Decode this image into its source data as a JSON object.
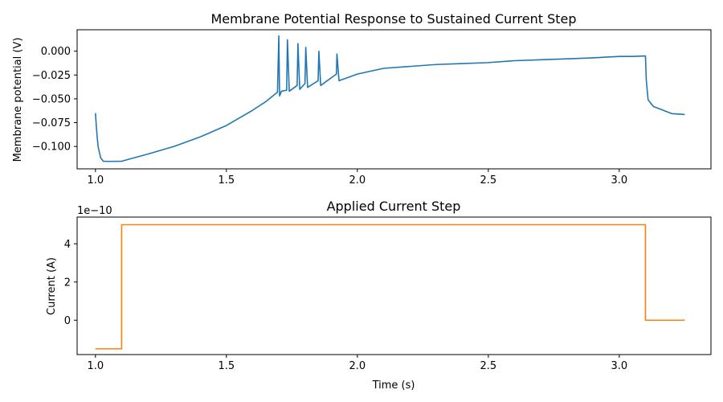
{
  "chart_data": [
    {
      "type": "line",
      "title": "Membrane Potential Response to Sustained Current Step",
      "xlabel": "",
      "ylabel": "Membrane potential (V)",
      "xlim": [
        0.93,
        3.35
      ],
      "ylim": [
        -0.1235,
        0.0225
      ],
      "xticks": [
        1.0,
        1.5,
        2.0,
        2.5,
        3.0
      ],
      "xticklabels": [
        "1.0",
        "1.5",
        "2.0",
        "2.5",
        "3.0"
      ],
      "yticks": [
        -0.1,
        -0.075,
        -0.05,
        -0.025,
        0.0
      ],
      "yticklabels": [
        "−0.100",
        "−0.075",
        "−0.050",
        "−0.025",
        "0.000"
      ],
      "grid": false,
      "series": [
        {
          "color": "#1f77b4",
          "x": [
            1.0,
            1.005,
            1.01,
            1.02,
            1.03,
            1.05,
            1.1,
            1.2,
            1.3,
            1.4,
            1.5,
            1.6,
            1.65,
            1.695,
            1.7,
            1.703,
            1.71,
            1.73,
            1.733,
            1.74,
            1.77,
            1.773,
            1.78,
            1.8,
            1.803,
            1.81,
            1.85,
            1.853,
            1.86,
            1.92,
            1.922,
            1.93,
            2.0,
            2.1,
            2.2,
            2.3,
            2.4,
            2.5,
            2.6,
            2.7,
            2.8,
            2.9,
            3.0,
            3.05,
            3.1,
            3.103,
            3.11,
            3.13,
            3.2,
            3.25
          ],
          "y": [
            -0.065,
            -0.085,
            -0.1,
            -0.112,
            -0.1155,
            -0.1157,
            -0.1155,
            -0.108,
            -0.1,
            -0.09,
            -0.078,
            -0.062,
            -0.053,
            -0.043,
            0.016,
            -0.047,
            -0.042,
            -0.041,
            0.012,
            -0.042,
            -0.036,
            0.008,
            -0.04,
            -0.034,
            0.004,
            -0.038,
            -0.031,
            0.0,
            -0.036,
            -0.024,
            -0.003,
            -0.031,
            -0.024,
            -0.018,
            -0.016,
            -0.014,
            -0.013,
            -0.012,
            -0.01,
            -0.009,
            -0.008,
            -0.007,
            -0.0055,
            -0.0055,
            -0.005,
            -0.03,
            -0.051,
            -0.058,
            -0.0655,
            -0.0665
          ]
        }
      ]
    },
    {
      "type": "line",
      "title": "Applied Current Step",
      "xlabel": "Time (s)",
      "ylabel": "Current (A)",
      "offset_text": "1e−10",
      "xlim": [
        0.93,
        3.35
      ],
      "ylim": [
        -1.8,
        5.4
      ],
      "xticks": [
        1.0,
        1.5,
        2.0,
        2.5,
        3.0
      ],
      "xticklabels": [
        "1.0",
        "1.5",
        "2.0",
        "2.5",
        "3.0"
      ],
      "yticks": [
        0,
        2,
        4
      ],
      "yticklabels": [
        "0",
        "2",
        "4"
      ],
      "grid": false,
      "series": [
        {
          "color": "#ff7f0e",
          "x": [
            1.0,
            1.1,
            1.1,
            3.1,
            3.1,
            3.25
          ],
          "y": [
            -1.5,
            -1.5,
            5.0,
            5.0,
            0.0,
            0.0
          ]
        }
      ]
    }
  ]
}
